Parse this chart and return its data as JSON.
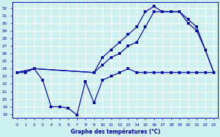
{
  "xlabel": "Graphe des températures (°C)",
  "bg_color": "#cff0f0",
  "grid_color": "#ffffff",
  "line_color": "#0000aa",
  "ylim": [
    17.5,
    32.8
  ],
  "xlim": [
    -0.5,
    23.5
  ],
  "yticks": [
    18,
    19,
    20,
    21,
    22,
    23,
    24,
    25,
    26,
    27,
    28,
    29,
    30,
    31,
    32
  ],
  "xticks": [
    0,
    1,
    2,
    3,
    4,
    5,
    6,
    7,
    8,
    9,
    10,
    11,
    12,
    13,
    14,
    15,
    16,
    17,
    18,
    19,
    20,
    21,
    22,
    23
  ],
  "line1_x": [
    0,
    1,
    2,
    3,
    4,
    5,
    6,
    7,
    8,
    9,
    10,
    11,
    12,
    13,
    14,
    15,
    16,
    17,
    18,
    19,
    20,
    21,
    22,
    23
  ],
  "line1_y": [
    23.5,
    23.5,
    24.0,
    22.5,
    19.0,
    19.0,
    18.8,
    17.9,
    22.3,
    19.5,
    22.5,
    23.0,
    23.5,
    24.0,
    23.5,
    23.5,
    23.5,
    23.5,
    23.5,
    23.5,
    23.5,
    23.5,
    23.5,
    23.5
  ],
  "line2_x": [
    0,
    2,
    9,
    10,
    11,
    12,
    13,
    14,
    15,
    16,
    17,
    18,
    19,
    20,
    21,
    22,
    23
  ],
  "line2_y": [
    23.5,
    24.0,
    23.5,
    24.5,
    25.5,
    26.0,
    27.0,
    27.5,
    29.5,
    31.5,
    31.5,
    31.5,
    31.5,
    30.0,
    29.0,
    26.5,
    23.5
  ],
  "line3_x": [
    0,
    2,
    9,
    10,
    11,
    12,
    13,
    14,
    15,
    16,
    17,
    18,
    19,
    20,
    21,
    22,
    23
  ],
  "line3_y": [
    23.5,
    24.0,
    23.5,
    25.5,
    26.5,
    27.5,
    28.5,
    29.5,
    31.5,
    32.2,
    31.5,
    31.5,
    31.5,
    30.5,
    29.5,
    26.5,
    23.5
  ]
}
